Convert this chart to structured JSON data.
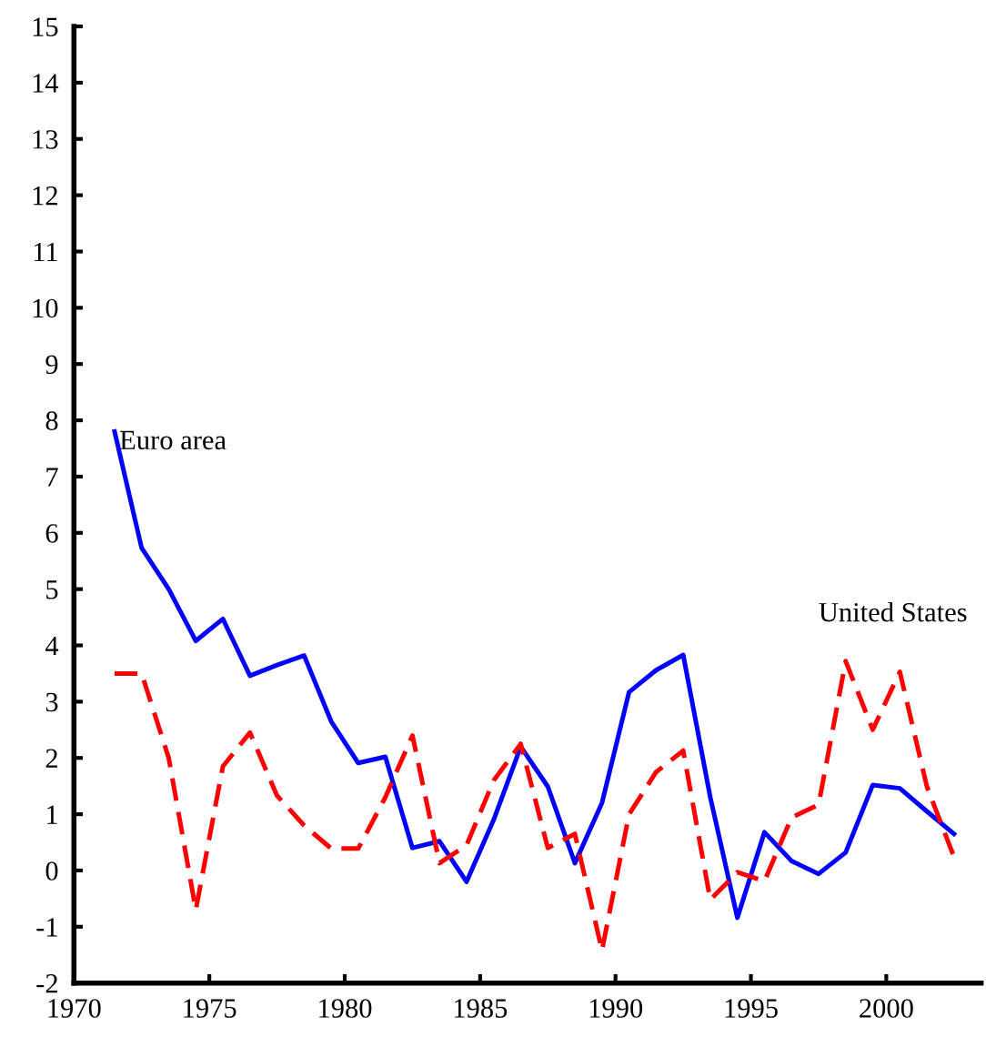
{
  "chart_data": {
    "type": "line",
    "x": [
      1971.5,
      1972.5,
      1973.5,
      1974.5,
      1975.5,
      1976.5,
      1977.5,
      1978.5,
      1979.5,
      1980.5,
      1981.5,
      1982.5,
      1983.5,
      1984.5,
      1985.5,
      1986.5,
      1987.5,
      1988.5,
      1989.5,
      1990.5,
      1991.5,
      1992.5,
      1993.5,
      1994.5,
      1995.5,
      1996.5,
      1997.5,
      1998.5,
      1999.5,
      2000.5,
      2001.5,
      2002.5
    ],
    "series": [
      {
        "name": "Euro area",
        "color": "#0000ff",
        "line_style": "solid",
        "values": [
          7.8,
          5.73,
          5.0,
          4.08,
          4.47,
          3.46,
          3.65,
          3.82,
          2.65,
          1.91,
          2.02,
          0.4,
          0.52,
          -0.2,
          0.9,
          2.2,
          1.49,
          0.13,
          1.2,
          3.17,
          3.56,
          3.83,
          1.3,
          -0.84,
          0.68,
          0.17,
          -0.06,
          0.32,
          1.52,
          1.46,
          1.05,
          0.65
        ]
      },
      {
        "name": "United States",
        "color": "#ff0000",
        "line_style": "dashed",
        "values": [
          3.5,
          3.5,
          2.0,
          -0.7,
          1.85,
          2.45,
          1.33,
          0.8,
          0.39,
          0.39,
          1.3,
          2.4,
          0.13,
          0.45,
          1.6,
          2.25,
          0.4,
          0.65,
          -1.42,
          1.0,
          1.75,
          2.13,
          -0.52,
          -0.03,
          -0.19,
          0.94,
          1.17,
          3.72,
          2.5,
          3.53,
          1.49,
          0.24
        ]
      }
    ],
    "xlim": [
      1970,
      2003.5
    ],
    "xticks": [
      1970,
      1975,
      1980,
      1985,
      1990,
      1995,
      2000
    ],
    "ylim": [
      -2,
      15
    ],
    "yticks": [
      -2,
      -1,
      0,
      1,
      2,
      3,
      4,
      5,
      6,
      7,
      8,
      9,
      10,
      11,
      12,
      13,
      14,
      15
    ],
    "grid": false,
    "legend": false
  }
}
